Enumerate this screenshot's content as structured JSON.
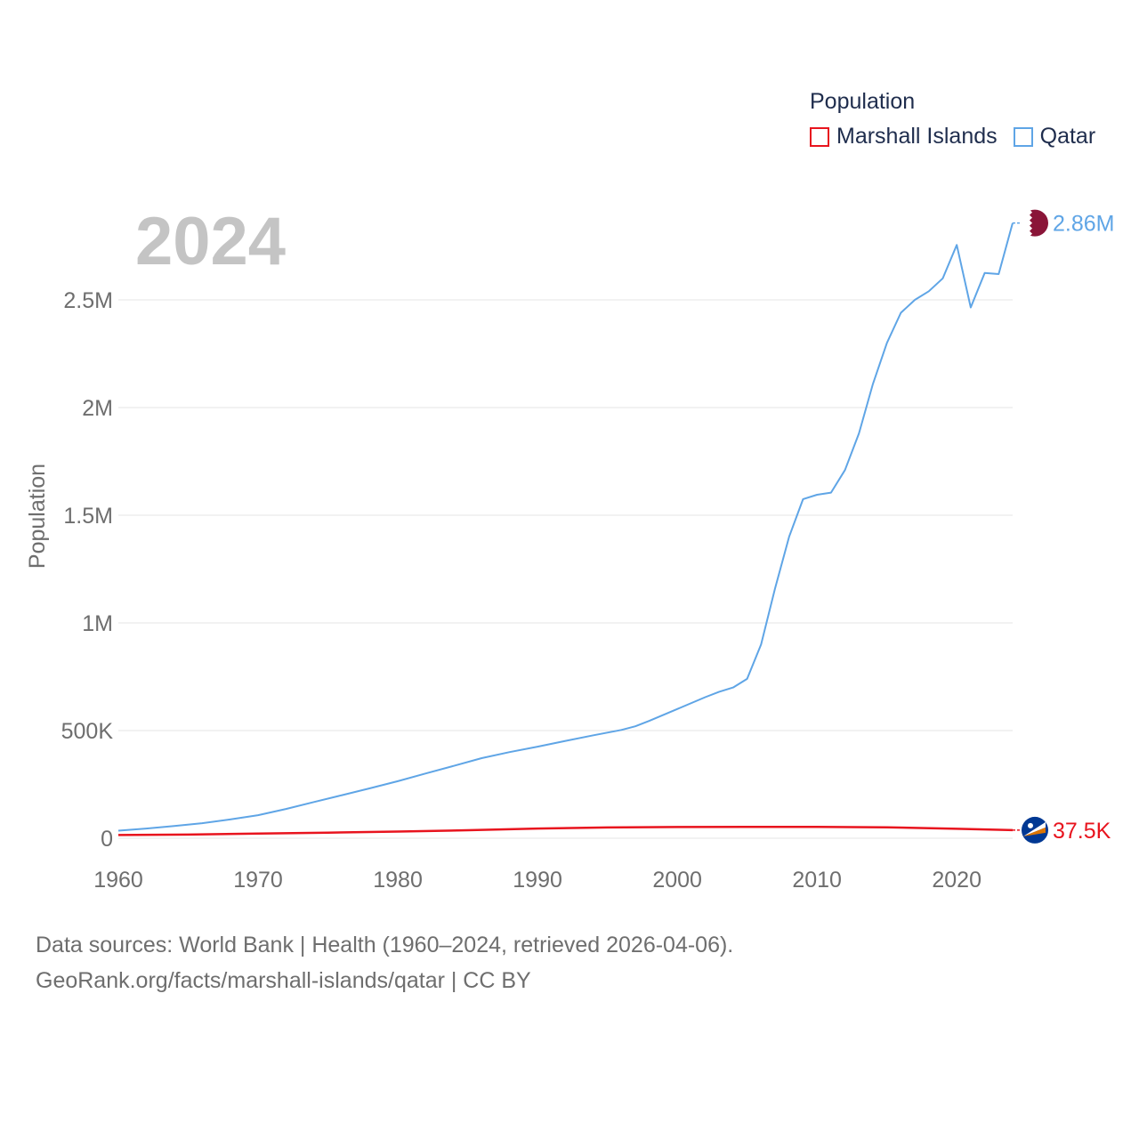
{
  "chart_data": {
    "type": "line",
    "title": "2024",
    "ylabel": "Population",
    "xlabel": "",
    "xlim": [
      1960,
      2024
    ],
    "ylim": [
      0,
      2750000
    ],
    "xticks": [
      1960,
      1970,
      1980,
      1990,
      2000,
      2010,
      2020
    ],
    "xtick_labels": [
      "1960",
      "1970",
      "1980",
      "1990",
      "2000",
      "2010",
      "2020"
    ],
    "yticks": [
      0,
      500000,
      1000000,
      1500000,
      2000000,
      2500000
    ],
    "ytick_labels": [
      "0",
      "500K",
      "1M",
      "1.5M",
      "2M",
      "2.5M"
    ],
    "grid": true,
    "legend_title": "Population",
    "legend_position": "top-right",
    "series": [
      {
        "name": "Marshall Islands",
        "color": "#e8141e",
        "end_label": "37.5K",
        "flag": "marshall-islands-flag-icon",
        "x": [
          1960,
          1965,
          1970,
          1975,
          1980,
          1985,
          1990,
          1995,
          2000,
          2005,
          2010,
          2015,
          2020,
          2024
        ],
        "y": [
          15000,
          17000,
          22000,
          26000,
          31000,
          37000,
          45000,
          50000,
          52000,
          53000,
          53000,
          51000,
          44000,
          37500
        ]
      },
      {
        "name": "Qatar",
        "color": "#5fa5e6",
        "end_label": "2.86M",
        "flag": "qatar-flag-icon",
        "x": [
          1960,
          1962,
          1964,
          1966,
          1968,
          1970,
          1972,
          1974,
          1976,
          1978,
          1980,
          1982,
          1984,
          1986,
          1988,
          1990,
          1992,
          1994,
          1996,
          1997,
          1998,
          2000,
          2002,
          2003,
          2004,
          2005,
          2006,
          2007,
          2008,
          2009,
          2010,
          2011,
          2012,
          2013,
          2014,
          2015,
          2016,
          2017,
          2018,
          2019,
          2020,
          2021,
          2022,
          2023,
          2024
        ],
        "y": [
          35000,
          45000,
          57000,
          70000,
          87000,
          107000,
          136000,
          168000,
          200000,
          232000,
          265000,
          301000,
          336000,
          372000,
          400000,
          425000,
          452000,
          478000,
          503000,
          520000,
          545000,
          600000,
          655000,
          680000,
          700000,
          740000,
          900000,
          1160000,
          1400000,
          1575000,
          1595000,
          1605000,
          1710000,
          1880000,
          2110000,
          2300000,
          2440000,
          2500000,
          2540000,
          2600000,
          2755000,
          2465000,
          2625000,
          2620000,
          2857000
        ]
      }
    ]
  },
  "footer": {
    "line1": "Data sources: World Bank | Health (1960–2024, retrieved 2026-04-06).",
    "line2": "GeoRank.org/facts/marshall-islands/qatar | CC BY"
  }
}
